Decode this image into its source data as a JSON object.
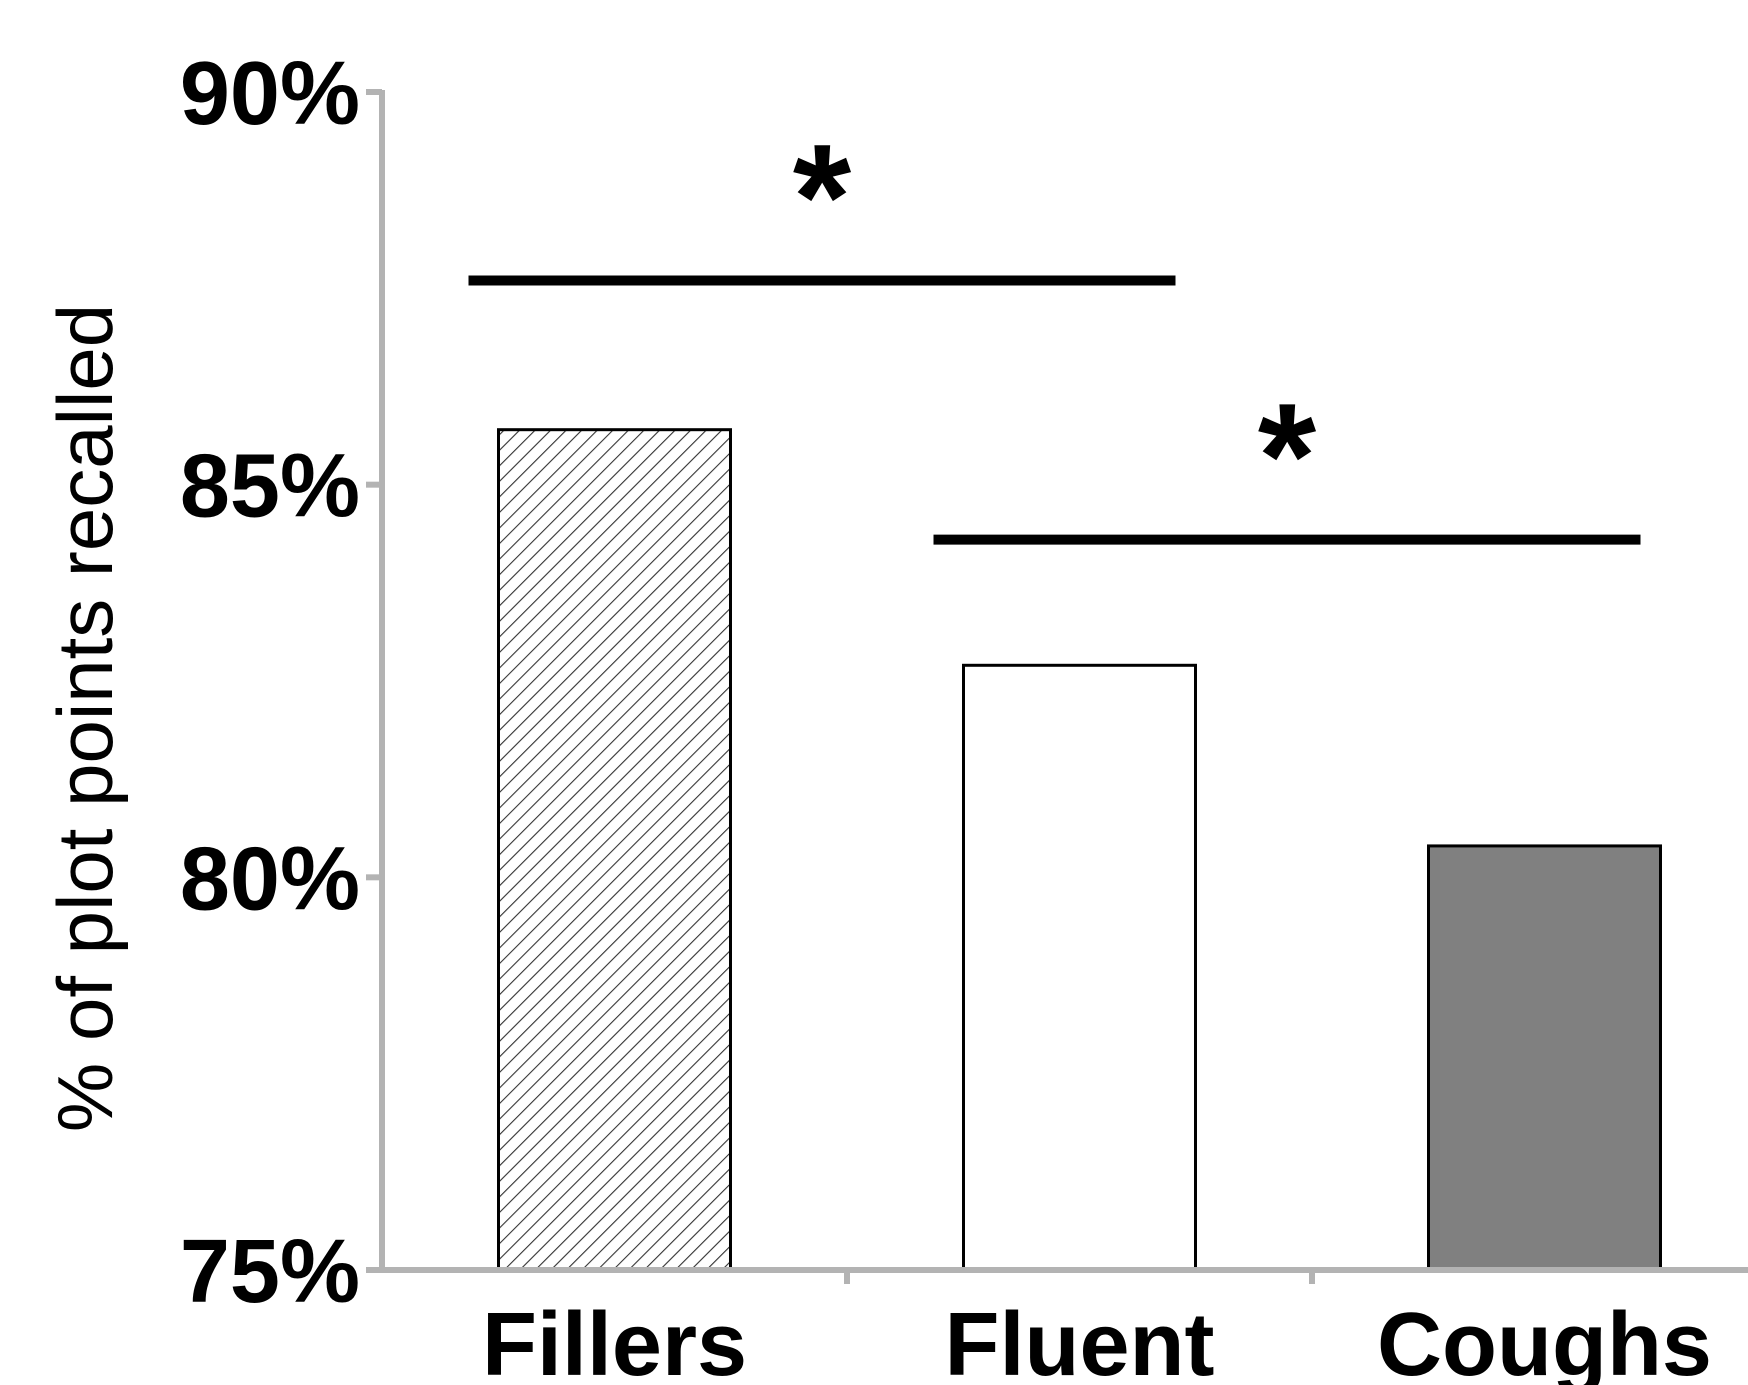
{
  "chart_data": {
    "type": "bar",
    "title": "",
    "xlabel": "",
    "ylabel": "% of plot points recalled",
    "categories": [
      "Fillers",
      "Fluent",
      "Coughs"
    ],
    "values": [
      85.7,
      82.7,
      80.4
    ],
    "ylim": [
      75,
      90
    ],
    "yticks": [
      75,
      80,
      85,
      90
    ],
    "ytick_labels": [
      "75%",
      "80%",
      "85%",
      "90%"
    ],
    "bar_fills": [
      "hatched",
      "#ffffff",
      "#808080"
    ],
    "axis_color": "#b3b3b3",
    "grid": false,
    "legend": "none",
    "significance": [
      {
        "from": 0,
        "to": 1,
        "label": "*",
        "level": 87.6
      },
      {
        "from": 1,
        "to": 2,
        "label": "*",
        "level": 84.3
      }
    ]
  }
}
